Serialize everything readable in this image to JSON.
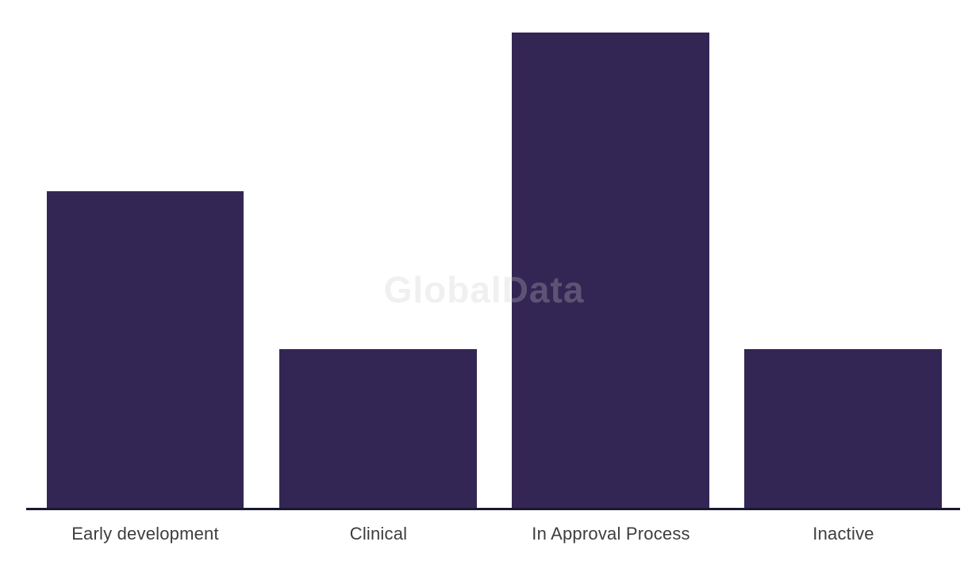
{
  "page": {
    "background": "#ffffff"
  },
  "watermark": {
    "text": "GlobalData",
    "color": "rgba(201,201,201,0.28)"
  },
  "chart_data": {
    "type": "bar",
    "categories": [
      "Early development",
      "Clinical",
      "In Approval Process",
      "Inactive"
    ],
    "values": [
      2,
      1,
      3,
      1
    ],
    "title": "",
    "xlabel": "",
    "ylabel": "",
    "ylim": [
      0,
      3
    ],
    "grid": false,
    "legend": false,
    "bar_color": "#342654",
    "axis_color": "#191831",
    "label_color": "#3d3d3d"
  }
}
